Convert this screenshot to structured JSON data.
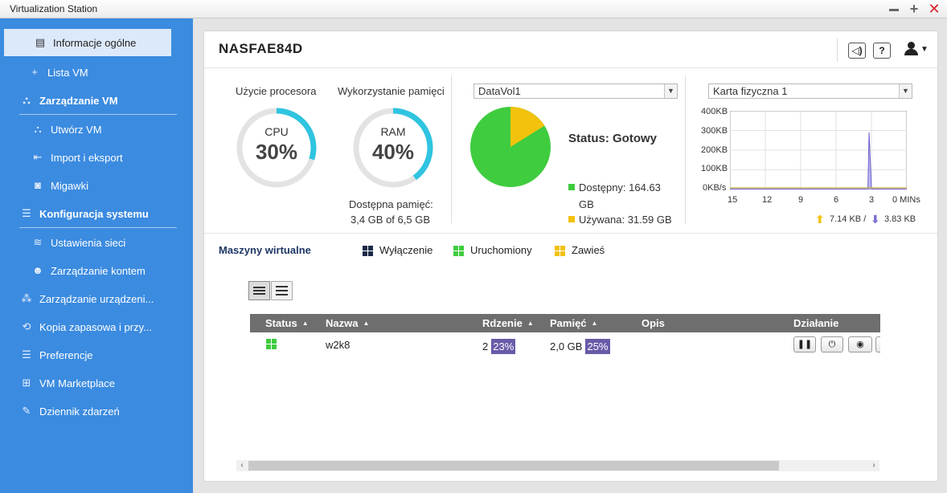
{
  "window": {
    "title": "Virtualization Station"
  },
  "sidebar": {
    "items": [
      {
        "label": "Informacje ogólne"
      },
      {
        "label": "Lista VM"
      },
      {
        "label": "Zarządzanie VM"
      },
      {
        "label": "Utwórz VM"
      },
      {
        "label": "Import i eksport"
      },
      {
        "label": "Migawki"
      },
      {
        "label": "Konfiguracja systemu"
      },
      {
        "label": "Ustawienia sieci"
      },
      {
        "label": "Zarządzanie kontem"
      },
      {
        "label": "Zarządzanie urządzeni..."
      },
      {
        "label": "Kopia zapasowa i przy..."
      },
      {
        "label": "Preferencje"
      },
      {
        "label": "VM Marketplace"
      },
      {
        "label": "Dziennik zdarzeń"
      }
    ]
  },
  "header": {
    "host": "NASFAE84D"
  },
  "cpu": {
    "label": "Użycie procesora",
    "name": "CPU",
    "percent_text": "30%",
    "percent": 30
  },
  "ram": {
    "label": "Wykorzystanie pamięci",
    "name": "RAM",
    "percent_text": "40%",
    "percent": 40,
    "available_label": "Dostępna pamięć:",
    "available_value": "3,4 GB of 6,5 GB"
  },
  "storage": {
    "volume": "DataVol1",
    "status": "Status: Gotowy",
    "available": "Dostępny: 164.63",
    "available_unit": "GB",
    "used": "Używana: 31.59 GB",
    "available_gb": 164.63,
    "used_gb": 31.59,
    "colors": {
      "available": "#3fcc3f",
      "used": "#f2c20d"
    }
  },
  "network": {
    "adapter": "Karta fizyczna 1",
    "y_ticks": [
      "400KB",
      "300KB",
      "200KB",
      "100KB",
      "0KB/s"
    ],
    "x_ticks": [
      "15",
      "12",
      "9",
      "6",
      "3",
      "0 MINs"
    ],
    "upload": "7.14 KB /",
    "download": "3.83 KB",
    "colors": {
      "download": "#7a6fd6",
      "upload": "#f2c20d"
    }
  },
  "chart_data": {
    "type": "line",
    "x": [
      15,
      12,
      9,
      6,
      3.6,
      3.3,
      3.2,
      3.0,
      2.9,
      2.6,
      0
    ],
    "series": [
      {
        "values": [
          2,
          2,
          2,
          2,
          2,
          2,
          290,
          10,
          2,
          2,
          2
        ]
      }
    ],
    "ylim": [
      0,
      400
    ],
    "xlim": [
      15,
      0
    ],
    "y_ticks": [
      "400KB",
      "300KB",
      "200KB",
      "100KB",
      "0KB/s"
    ],
    "x_ticks": [
      "15",
      "12",
      "9",
      "6",
      "3",
      "0 MINs"
    ],
    "grid": true
  },
  "vms": {
    "title": "Maszyny wirtualne",
    "legend": [
      {
        "label": "Wyłączenie",
        "color": "#1b2a49"
      },
      {
        "label": "Uruchomiony",
        "color": "#3fcc3f"
      },
      {
        "label": "Zawieś",
        "color": "#f2c20d"
      }
    ],
    "columns": {
      "status": "Status",
      "name": "Nazwa",
      "cores": "Rdzenie",
      "memory": "Pamięć",
      "desc": "Opis",
      "action": "Działanie"
    },
    "rows": [
      {
        "name": "w2k8",
        "cores": "2",
        "cpu": "23%",
        "memory": "2,0 GB",
        "mem_pct": "25%",
        "desc": ""
      }
    ]
  }
}
